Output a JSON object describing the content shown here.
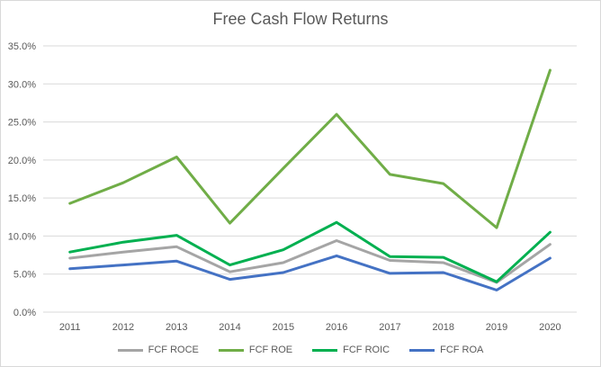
{
  "chart_data": {
    "type": "line",
    "title": "Free Cash Flow Returns",
    "xlabel": "",
    "ylabel": "",
    "categories": [
      "2011",
      "2012",
      "2013",
      "2014",
      "2015",
      "2016",
      "2017",
      "2018",
      "2019",
      "2020"
    ],
    "ylim": [
      0,
      35
    ],
    "yticks": [
      "0.0%",
      "5.0%",
      "10.0%",
      "15.0%",
      "20.0%",
      "25.0%",
      "30.0%",
      "35.0%"
    ],
    "grid": true,
    "legend_position": "bottom",
    "series": [
      {
        "name": "FCF ROCE",
        "color": "#a5a5a5",
        "values": [
          7.1,
          7.9,
          8.6,
          5.3,
          6.5,
          9.4,
          6.8,
          6.5,
          3.9,
          8.9
        ]
      },
      {
        "name": "FCF ROE",
        "color": "#70ad47",
        "values": [
          14.3,
          17.0,
          20.4,
          11.7,
          18.9,
          26.0,
          18.1,
          16.9,
          11.1,
          31.8
        ]
      },
      {
        "name": "FCF ROIC",
        "color": "#00b050",
        "values": [
          7.9,
          9.2,
          10.1,
          6.2,
          8.2,
          11.8,
          7.3,
          7.2,
          4.0,
          10.5
        ]
      },
      {
        "name": "FCF ROA",
        "color": "#4472c4",
        "values": [
          5.7,
          6.2,
          6.7,
          4.3,
          5.2,
          7.4,
          5.1,
          5.2,
          2.9,
          7.1
        ]
      }
    ]
  }
}
